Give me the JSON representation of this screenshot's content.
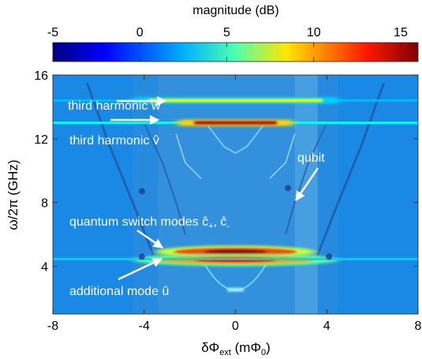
{
  "chart_data": {
    "type": "heatmap",
    "colorbar": {
      "title": "magnitude (dB)",
      "range": [
        -5,
        16
      ],
      "ticks": [
        "-5",
        "0",
        "5",
        "10",
        "15"
      ],
      "tick_values": [
        -5,
        0,
        5,
        10,
        15
      ],
      "colormap": "jet"
    },
    "xlim": [
      -8,
      8
    ],
    "ylim": [
      1,
      16
    ],
    "x_ticks": [
      "-8",
      "-4",
      "0",
      "4",
      "8"
    ],
    "x_tick_values": [
      -8,
      -4,
      0,
      4,
      8
    ],
    "y_ticks": [
      "4",
      "8",
      "12",
      "16"
    ],
    "y_tick_values": [
      4,
      8,
      12,
      16
    ],
    "xlabel": {
      "main": "δΦ",
      "sub": "ext",
      "unit_open": " (mΦ",
      "unit_sub": "0",
      "unit_close": ")"
    },
    "ylabel": "ω/2π (GHz)",
    "background_db": 0.5,
    "features": [
      {
        "kind": "line",
        "label": "third harmonic ŵ",
        "y_ghz": 14.4,
        "x_range": [
          -8,
          8
        ],
        "db": 1.5,
        "peak_db": 8,
        "peak_x_range": [
          -4.5,
          4.5
        ]
      },
      {
        "kind": "line",
        "label": "third harmonic v̂",
        "y_ghz": 13.0,
        "x_range": [
          -8,
          8
        ],
        "db": 3,
        "peak_db": 15,
        "peak_x_range": [
          -2.5,
          2.5
        ]
      },
      {
        "kind": "band",
        "label": "quantum switch modes ĉ+, ĉ-",
        "y_ghz": 4.9,
        "x_range": [
          -3.5,
          3.5
        ],
        "peak_db": 16
      },
      {
        "kind": "band",
        "label": "quantum switch modes ĉ+, ĉ-",
        "y_ghz": 4.4,
        "x_range": [
          -4.5,
          4.5
        ],
        "peak_db": 14
      },
      {
        "kind": "line",
        "label": "additional mode û",
        "y_ghz": 4.45,
        "x_range": [
          -8,
          8
        ],
        "db": 2
      },
      {
        "kind": "curve",
        "label": "qubit",
        "vertex_x": 0,
        "vertex_y_ghz": 2.5
      }
    ],
    "annotations": [
      {
        "text": "third harmonic ŵ"
      },
      {
        "text": "third harmonic v̂"
      },
      {
        "text": "qubit"
      },
      {
        "text": "quantum switch modes ĉ+, ĉ-"
      },
      {
        "text": "additional mode û"
      }
    ]
  },
  "labels": {
    "third_w": "third harmonic ŵ",
    "third_v": "third harmonic v̂",
    "qubit": "qubit",
    "switch_main": "quantum switch modes ĉ",
    "switch_plus": "+",
    "switch_mid": ", ĉ",
    "switch_minus": "-",
    "additional": "additional mode û"
  }
}
